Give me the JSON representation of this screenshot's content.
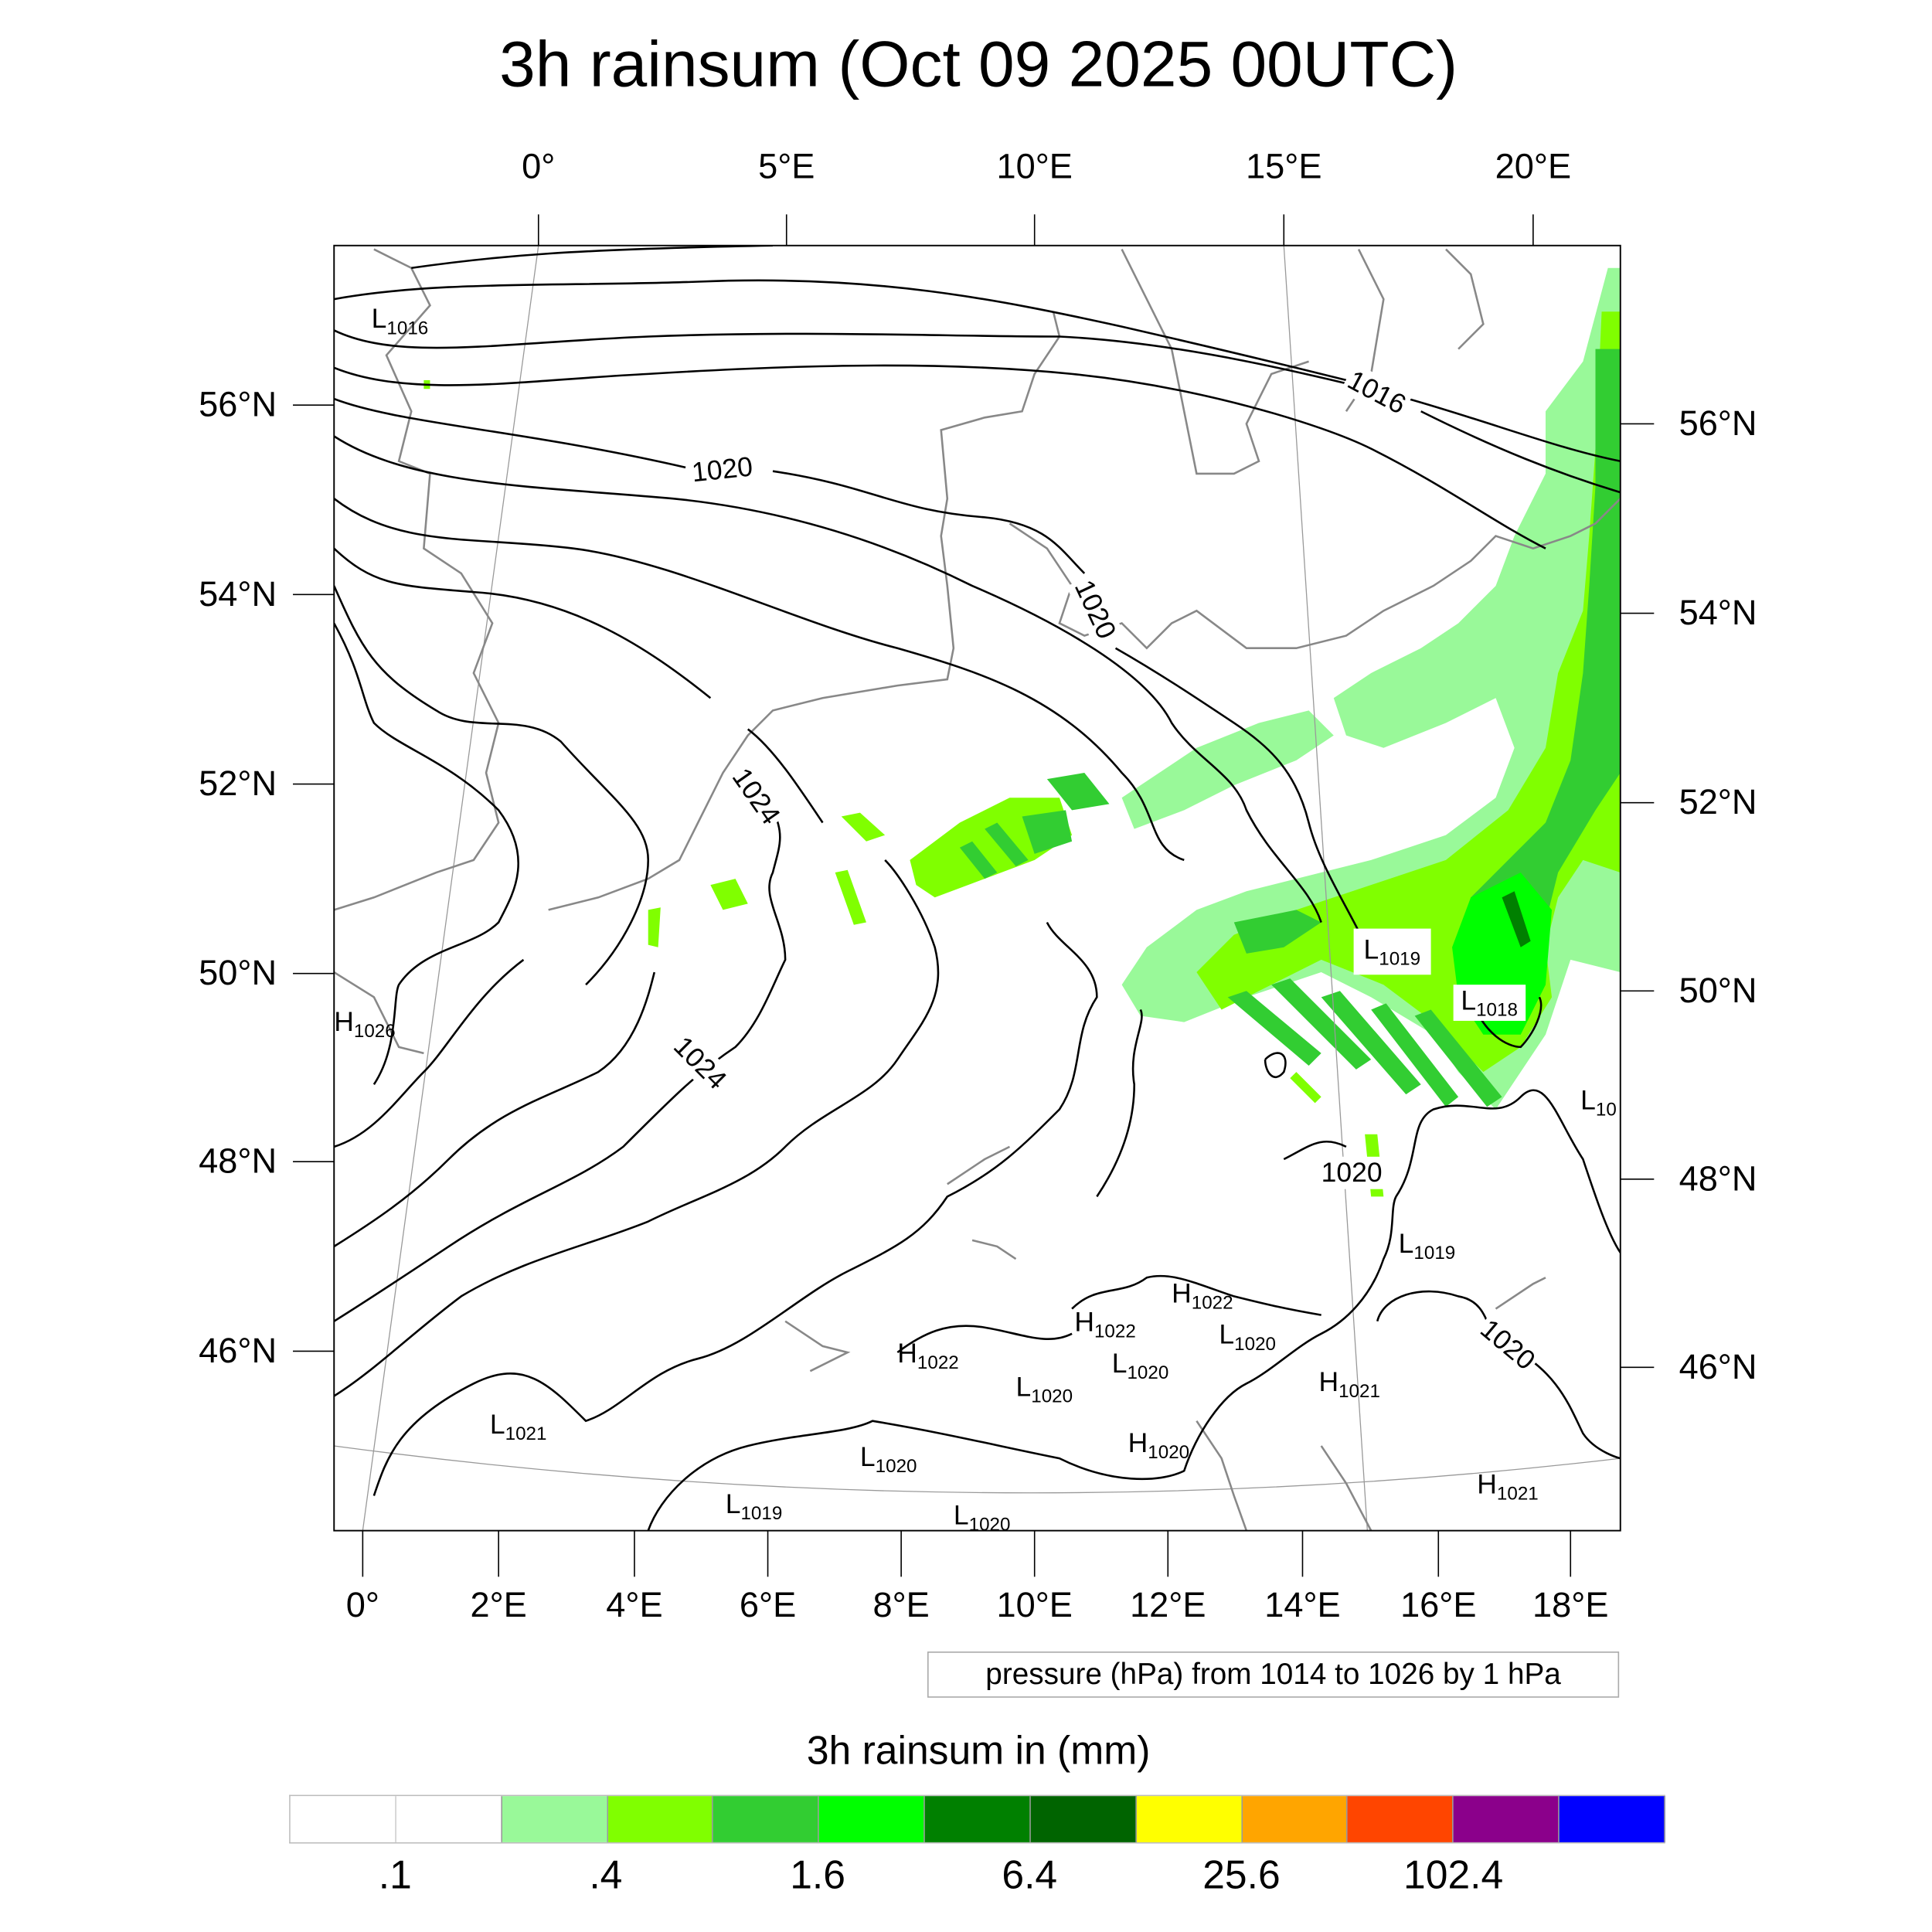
{
  "title": "3h rainsum (Oct 09 2025 00UTC)",
  "axes": {
    "top_lon_labels": [
      "0°",
      "5°E",
      "10°E",
      "15°E",
      "20°E"
    ],
    "bottom_lon_labels": [
      "0°",
      "2°E",
      "4°E",
      "6°E",
      "8°E",
      "10°E",
      "12°E",
      "14°E",
      "16°E",
      "18°E"
    ],
    "left_lat_labels": [
      "56°N",
      "54°N",
      "52°N",
      "50°N",
      "48°N",
      "46°N"
    ],
    "right_lat_labels": [
      "56°N",
      "54°N",
      "52°N",
      "50°N",
      "48°N",
      "46°N"
    ]
  },
  "contour_labels": [
    "1016",
    "1020",
    "1020",
    "1024",
    "1024",
    "1020",
    "1020"
  ],
  "pressure_centers": [
    {
      "type": "L",
      "value": "1016"
    },
    {
      "type": "H",
      "value": "1026"
    },
    {
      "type": "L",
      "value": "1021"
    },
    {
      "type": "L",
      "value": "1019"
    },
    {
      "type": "L",
      "value": "1018"
    },
    {
      "type": "L",
      "value": "10"
    },
    {
      "type": "L",
      "value": "1019"
    },
    {
      "type": "H",
      "value": "1022"
    },
    {
      "type": "H",
      "value": "1022"
    },
    {
      "type": "L",
      "value": "1020"
    },
    {
      "type": "H",
      "value": "1022"
    },
    {
      "type": "L",
      "value": "1020"
    },
    {
      "type": "L",
      "value": "1020"
    },
    {
      "type": "H",
      "value": "1021"
    },
    {
      "type": "H",
      "value": "1020"
    },
    {
      "type": "L",
      "value": "1020"
    },
    {
      "type": "L",
      "value": "1019"
    },
    {
      "type": "L",
      "value": "1020"
    },
    {
      "type": "H",
      "value": "1021"
    }
  ],
  "info_box": "pressure (hPa) from 1014 to 1026 by 1 hPa",
  "colorbar": {
    "title": "3h rainsum in (mm)",
    "labels": [
      ".1",
      ".4",
      "1.6",
      "6.4",
      "25.6",
      "102.4"
    ],
    "colors": [
      "#ffffff",
      "#ffffff",
      "#99f999",
      "#80ff00",
      "#32cd32",
      "#00ff00",
      "#008000",
      "#006400",
      "#ffff00",
      "#ffa500",
      "#ff4500",
      "#8b008b",
      "#0000ff"
    ]
  },
  "chart_data": {
    "type": "heatmap",
    "title": "3h rainsum (Oct 09 2025 00UTC)",
    "colorbar_title": "3h rainsum in (mm)",
    "levels": [
      0.1,
      0.2,
      0.4,
      0.8,
      1.6,
      3.2,
      6.4,
      12.8,
      25.6,
      51.2,
      102.4,
      204.8
    ],
    "contour_variable": "pressure (hPa)",
    "contour_range": [
      1014,
      1026
    ],
    "contour_interval": 1,
    "lon_range": [
      0,
      20
    ],
    "lat_range": [
      45,
      57
    ]
  }
}
